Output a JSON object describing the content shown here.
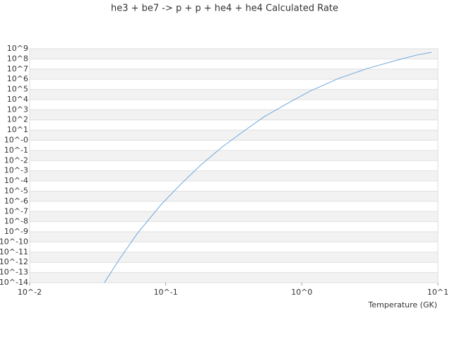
{
  "chart_data": {
    "type": "line",
    "title": "he3 + be7 -> p + p + he4 + he4 Calculated Rate",
    "x_label": "Temperature (GK)",
    "log_x": true,
    "log_y": true,
    "grid_bands": true,
    "x": [
      0.0354,
      0.046,
      0.062,
      0.092,
      0.127,
      0.182,
      0.26,
      0.372,
      0.531,
      0.807,
      1.15,
      1.86,
      3.0,
      4.83,
      6.9,
      8.97
    ],
    "series": [
      {
        "color": "#6fa8dc",
        "values": [
          1e-14,
          2.3e-12,
          7.2e-10,
          4.4e-07,
          3.9e-05,
          0.004,
          0.22,
          7.4,
          214,
          5200,
          68000,
          1200000.0,
          11000000.0,
          66000000.0,
          230000000.0,
          450000000.0
        ]
      }
    ],
    "xlim": [
      0.01,
      10
    ],
    "xticks": [
      {
        "value": 0.01,
        "label": "10^-2"
      },
      {
        "value": 0.1,
        "label": "10^-1"
      },
      {
        "value": 1,
        "label": "10^0"
      },
      {
        "value": 10,
        "label": "10^1"
      }
    ],
    "ylim": [
      1e-14,
      1000000000.0
    ],
    "yticks": [
      {
        "value": 1e-14,
        "label": "10^-14"
      },
      {
        "value": 1e-13,
        "label": "10^-13"
      },
      {
        "value": 1e-12,
        "label": "10^-12"
      },
      {
        "value": 1e-11,
        "label": "10^-11"
      },
      {
        "value": 1e-10,
        "label": "10^-10"
      },
      {
        "value": 1e-09,
        "label": "10^-9"
      },
      {
        "value": 1e-08,
        "label": "10^-8"
      },
      {
        "value": 1e-07,
        "label": "10^-7"
      },
      {
        "value": 1e-06,
        "label": "10^-6"
      },
      {
        "value": 1e-05,
        "label": "10^-5"
      },
      {
        "value": 0.0001,
        "label": "10^-4"
      },
      {
        "value": 0.001,
        "label": "10^-3"
      },
      {
        "value": 0.01,
        "label": "10^-2"
      },
      {
        "value": 0.1,
        "label": "10^-1"
      },
      {
        "value": 1,
        "label": "10^-0"
      },
      {
        "value": 10,
        "label": "10^1"
      },
      {
        "value": 100,
        "label": "10^2"
      },
      {
        "value": 1000,
        "label": "10^3"
      },
      {
        "value": 10000,
        "label": "10^4"
      },
      {
        "value": 100000,
        "label": "10^5"
      },
      {
        "value": 1000000,
        "label": "10^6"
      },
      {
        "value": 10000000,
        "label": "10^7"
      },
      {
        "value": 100000000,
        "label": "10^8"
      },
      {
        "value": 1000000000,
        "label": "10^9"
      }
    ]
  }
}
